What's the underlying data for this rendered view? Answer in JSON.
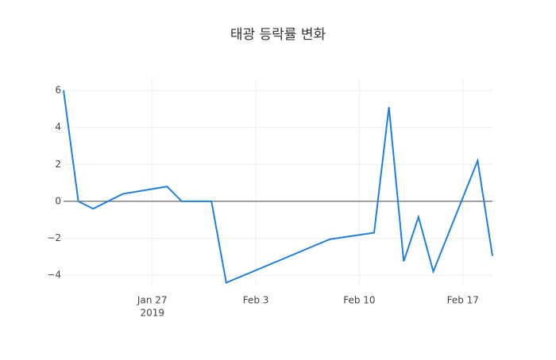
{
  "chart_data": {
    "type": "line",
    "title": "태광 등락률 변화",
    "x": [
      "2019-01-21",
      "2019-01-22",
      "2019-01-23",
      "2019-01-25",
      "2019-01-28",
      "2019-01-29",
      "2019-01-31",
      "2019-02-01",
      "2019-02-08",
      "2019-02-11",
      "2019-02-12",
      "2019-02-13",
      "2019-02-14",
      "2019-02-15",
      "2019-02-18",
      "2019-02-19"
    ],
    "series": [
      {
        "name": "등락률",
        "color": "#1f7fe0",
        "values": [
          6.0,
          0,
          -0.4,
          0.4,
          0.8,
          0,
          0,
          -4.4,
          -2.05,
          -1.7,
          5.1,
          -3.25,
          -0.85,
          -3.8,
          2.2,
          -2.95
        ]
      }
    ],
    "xlim": [
      "2019-01-21",
      "2019-02-19"
    ],
    "xticks": [
      {
        "value": "2019-01-27",
        "label": "Jan 27"
      },
      {
        "value": "2019-02-03",
        "label": "Feb 3"
      },
      {
        "value": "2019-02-10",
        "label": "Feb 10"
      },
      {
        "value": "2019-02-17",
        "label": "Feb 17"
      }
    ],
    "x_year": "2019",
    "ylim": [
      -4.55,
      6.6
    ],
    "yticks": [
      {
        "value": -4,
        "label": "−4"
      },
      {
        "value": -2,
        "label": "−2"
      },
      0,
      2,
      4,
      6
    ],
    "grid": true,
    "zero_line": true
  }
}
